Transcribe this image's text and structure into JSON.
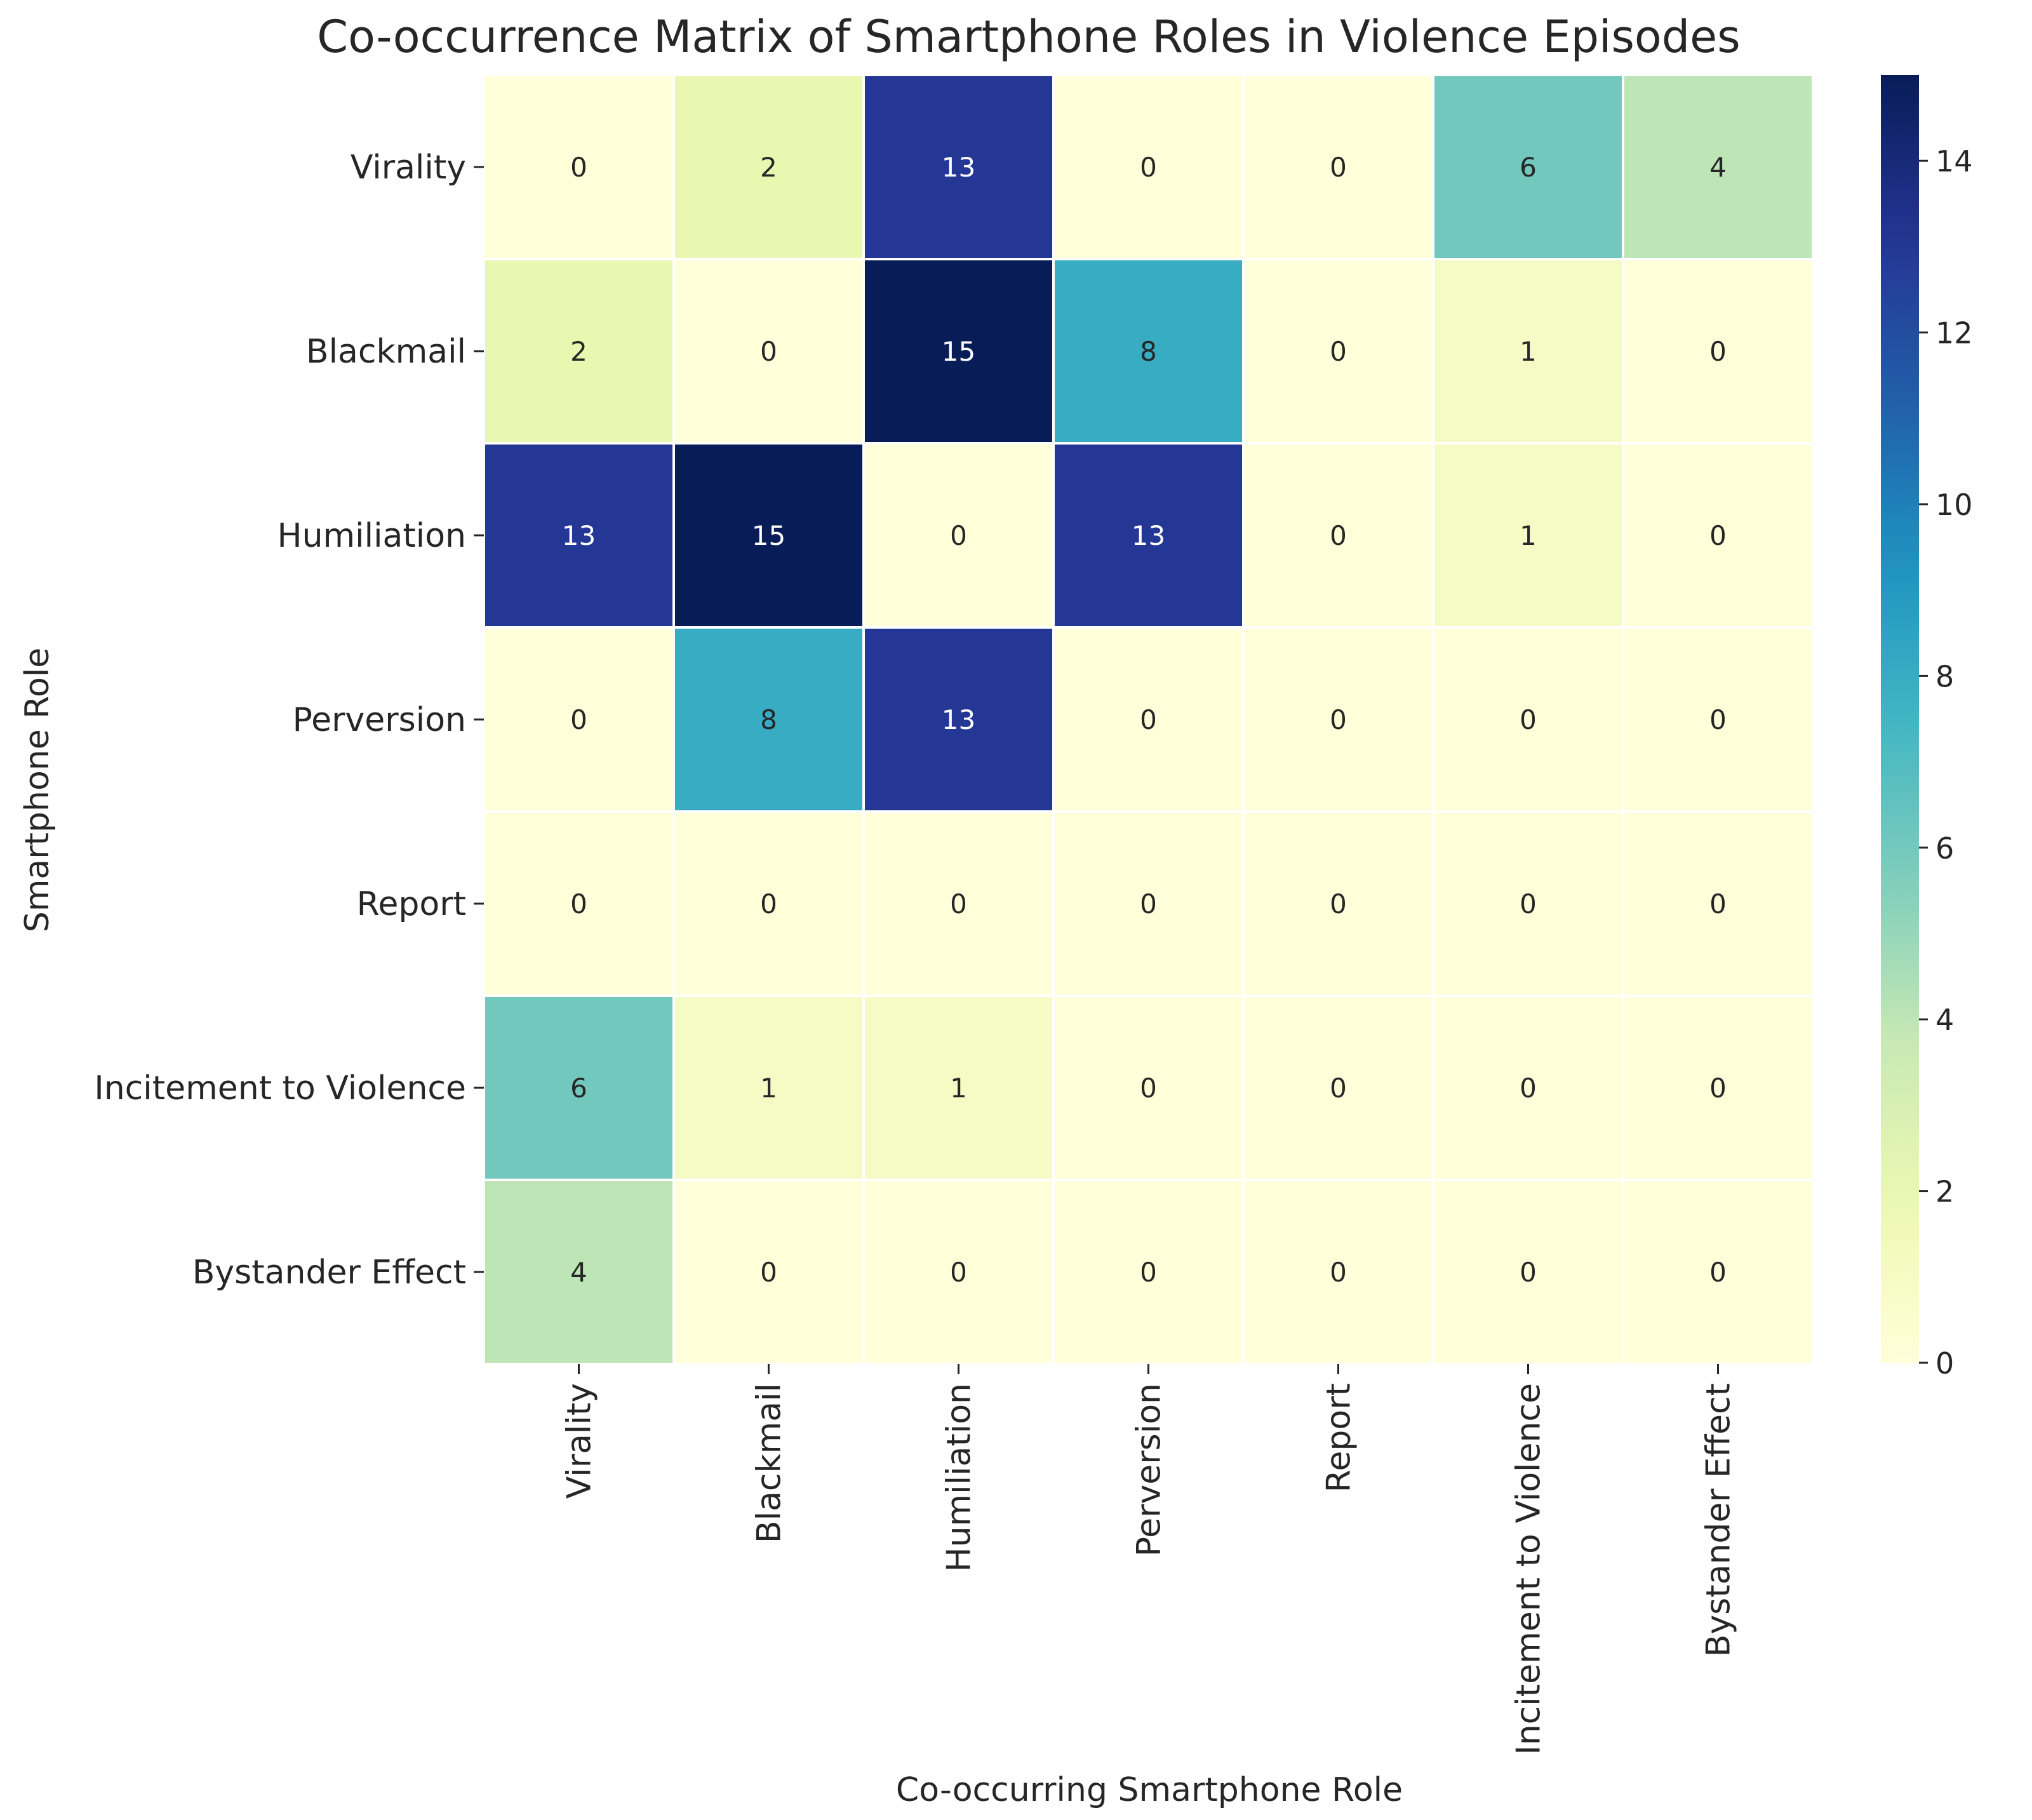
{
  "chart_data": {
    "type": "heatmap",
    "title": "Co-occurrence Matrix of Smartphone Roles in Violence Episodes",
    "xlabel": "Co-occurring Smartphone Role",
    "ylabel": "Smartphone Role",
    "rows": [
      "Virality",
      "Blackmail",
      "Humiliation",
      "Perversion",
      "Report",
      "Incitement to Violence",
      "Bystander Effect"
    ],
    "columns": [
      "Virality",
      "Blackmail",
      "Humiliation",
      "Perversion",
      "Report",
      "Incitement to Violence",
      "Bystander Effect"
    ],
    "values": [
      [
        0,
        2,
        13,
        0,
        0,
        6,
        4
      ],
      [
        2,
        0,
        15,
        8,
        0,
        1,
        0
      ],
      [
        13,
        15,
        0,
        13,
        0,
        1,
        0
      ],
      [
        0,
        8,
        13,
        0,
        0,
        0,
        0
      ],
      [
        0,
        0,
        0,
        0,
        0,
        0,
        0
      ],
      [
        6,
        1,
        1,
        0,
        0,
        0,
        0
      ],
      [
        4,
        0,
        0,
        0,
        0,
        0,
        0
      ]
    ],
    "colormap": "YlGnBu",
    "colorbar": {
      "min": 0,
      "max": 15,
      "ticks": [
        0,
        2,
        4,
        6,
        8,
        10,
        12,
        14
      ]
    },
    "annotations": true
  }
}
